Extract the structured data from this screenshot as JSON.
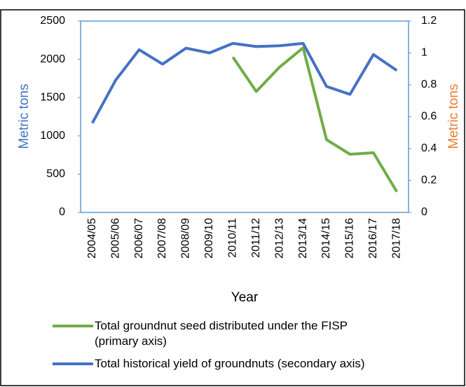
{
  "chart_data": {
    "type": "line",
    "xlabel": "Year",
    "ylabel": "Metric tons",
    "y2label": "Metric tons",
    "categories": [
      "2004/05",
      "2005/06",
      "2006/07",
      "2007/08",
      "2008/09",
      "2009/10",
      "2010/11",
      "2011/12",
      "2012/13",
      "2013/14",
      "2014/15",
      "2015/16",
      "2016/17",
      "2017/18"
    ],
    "series": [
      {
        "name": "Total groundnut seed distributed under the FISP (primary axis)",
        "color": "#70ad47",
        "axis": "y",
        "values": [
          null,
          null,
          null,
          null,
          null,
          null,
          2030,
          1580,
          1900,
          2150,
          950,
          760,
          780,
          270
        ]
      },
      {
        "name": "Total historical yield of groundnuts (secondary axis)",
        "color": "#4472c4",
        "axis": "y2",
        "values": [
          0.56,
          0.83,
          1.02,
          0.93,
          1.03,
          1.0,
          1.06,
          1.04,
          1.045,
          1.06,
          0.79,
          0.74,
          0.99,
          0.89
        ]
      }
    ],
    "ylim": [
      0,
      2500
    ],
    "yticks": [
      0,
      500,
      1000,
      1500,
      2000,
      2500
    ],
    "y2lim": [
      0,
      1.2
    ],
    "y2ticks": [
      0,
      0.2,
      0.4,
      0.6,
      0.8,
      1,
      1.2
    ],
    "ylabel_color": "#4472c4",
    "y2label_color": "#ed7d31"
  }
}
